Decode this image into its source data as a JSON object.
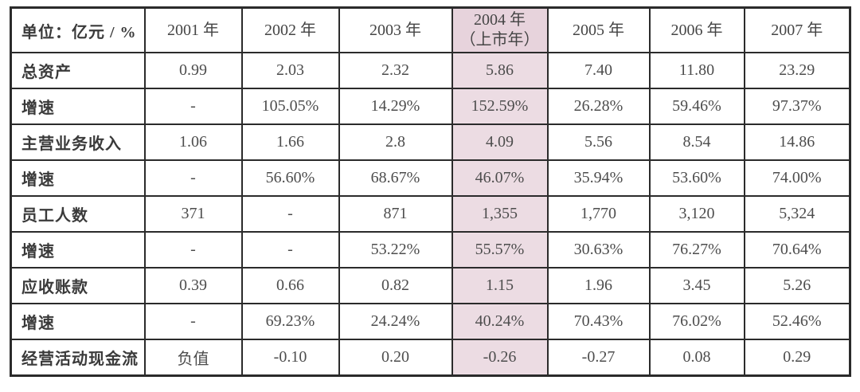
{
  "table": {
    "unit_header": "单位：亿元 / %",
    "columns": [
      "2001 年",
      "2002 年",
      "2003 年",
      "2004 年\n（上市年）",
      "2005 年",
      "2006 年",
      "2007 年"
    ],
    "highlight_column_index": 3,
    "highlight_note": "2004 年为上市年，整列高亮",
    "rows": [
      {
        "label": "总资产",
        "values": [
          "0.99",
          "2.03",
          "2.32",
          "5.86",
          "7.40",
          "11.80",
          "23.29"
        ]
      },
      {
        "label": "增速",
        "values": [
          "-",
          "105.05%",
          "14.29%",
          "152.59%",
          "26.28%",
          "59.46%",
          "97.37%"
        ]
      },
      {
        "label": "主营业务收入",
        "values": [
          "1.06",
          "1.66",
          "2.8",
          "4.09",
          "5.56",
          "8.54",
          "14.86"
        ]
      },
      {
        "label": "增速",
        "values": [
          "-",
          "56.60%",
          "68.67%",
          "46.07%",
          "35.94%",
          "53.60%",
          "74.00%"
        ]
      },
      {
        "label": "员工人数",
        "values": [
          "371",
          "-",
          "871",
          "1,355",
          "1,770",
          "3,120",
          "5,324"
        ]
      },
      {
        "label": "增速",
        "values": [
          "-",
          "-",
          "53.22%",
          "55.57%",
          "30.63%",
          "76.27%",
          "70.64%"
        ]
      },
      {
        "label": "应收账款",
        "values": [
          "0.39",
          "0.66",
          "0.82",
          "1.15",
          "1.96",
          "3.45",
          "5.26"
        ]
      },
      {
        "label": "增速",
        "values": [
          "-",
          "69.23%",
          "24.24%",
          "40.24%",
          "70.43%",
          "76.02%",
          "52.46%"
        ]
      },
      {
        "label": "经营活动现金流",
        "values": [
          "负值",
          "-0.10",
          "0.20",
          "-0.26",
          "-0.27",
          "0.08",
          "0.29"
        ]
      }
    ],
    "colors": {
      "highlight_header": "#e7d3dc",
      "highlight_cell": "#ecdce3",
      "border": "#2b2b2b",
      "text": "#4d4d4d"
    }
  }
}
